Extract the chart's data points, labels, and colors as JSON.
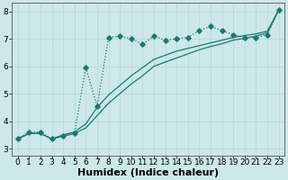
{
  "xlabel": "Humidex (Indice chaleur)",
  "bg_color": "#cce8e8",
  "line_color": "#1a7a6e",
  "xlim": [
    -0.5,
    23.5
  ],
  "ylim": [
    2.75,
    8.3
  ],
  "xticks": [
    0,
    1,
    2,
    3,
    4,
    5,
    6,
    7,
    8,
    9,
    10,
    11,
    12,
    13,
    14,
    15,
    16,
    17,
    18,
    19,
    20,
    21,
    22,
    23
  ],
  "yticks": [
    3,
    4,
    5,
    6,
    7,
    8
  ],
  "line1_x": [
    0,
    1,
    2,
    3,
    4,
    5,
    6,
    7,
    8,
    9,
    10,
    11,
    12,
    13,
    14,
    15,
    16,
    17,
    18,
    19,
    20,
    21,
    22,
    23
  ],
  "line1_y": [
    3.35,
    3.6,
    3.6,
    3.35,
    3.45,
    3.55,
    5.95,
    4.55,
    7.05,
    7.1,
    7.0,
    6.8,
    7.1,
    6.95,
    7.0,
    7.05,
    7.3,
    7.45,
    7.3,
    7.15,
    7.05,
    7.05,
    7.15,
    8.05
  ],
  "line2_x": [
    0,
    1,
    2,
    3,
    4,
    5,
    6,
    7,
    8,
    9,
    10,
    11,
    12,
    13,
    14,
    15,
    16,
    17,
    18,
    19,
    20,
    21,
    22,
    23
  ],
  "line2_y": [
    3.35,
    3.55,
    3.55,
    3.35,
    3.5,
    3.6,
    3.9,
    4.5,
    4.95,
    5.3,
    5.65,
    5.95,
    6.25,
    6.4,
    6.55,
    6.65,
    6.75,
    6.85,
    6.95,
    7.05,
    7.12,
    7.18,
    7.28,
    8.05
  ],
  "line3_x": [
    0,
    1,
    2,
    3,
    4,
    5,
    6,
    7,
    8,
    9,
    10,
    11,
    12,
    13,
    14,
    15,
    16,
    17,
    18,
    19,
    20,
    21,
    22,
    23
  ],
  "line3_y": [
    3.35,
    3.55,
    3.55,
    3.35,
    3.45,
    3.55,
    3.75,
    4.2,
    4.65,
    5.0,
    5.35,
    5.65,
    6.0,
    6.15,
    6.3,
    6.45,
    6.6,
    6.72,
    6.82,
    6.95,
    7.02,
    7.1,
    7.22,
    8.05
  ],
  "grid_color": "#b8d8d8",
  "tick_fontsize": 6.5,
  "xlabel_fontsize": 8
}
